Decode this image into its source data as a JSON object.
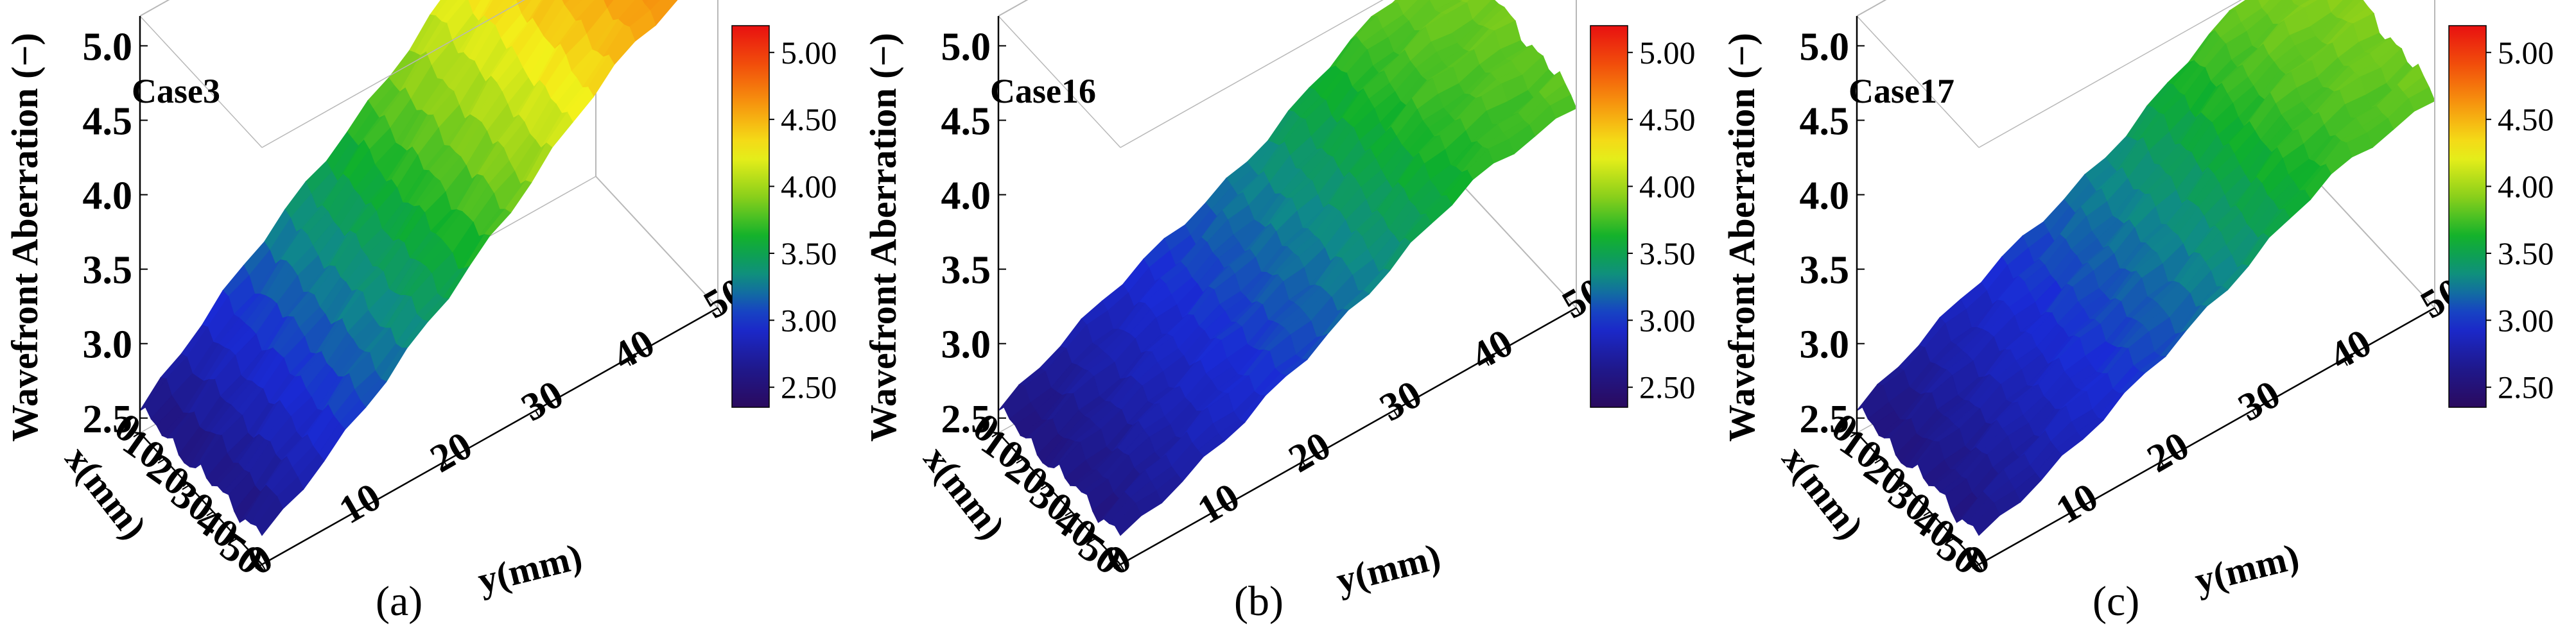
{
  "colors": {
    "background": "#ffffff",
    "colormap": [
      "#2a0a5e",
      "#1e1a90",
      "#1a2bd6",
      "#0f8a8a",
      "#0eb02c",
      "#8ed11a",
      "#f3f21a",
      "#f7a20f",
      "#f2540b",
      "#e81010"
    ]
  },
  "chart_data": [
    {
      "type": "surface3d",
      "panel_label": "(a)",
      "title": "Case3",
      "zlabel": "Wavefront Aberration  (−)",
      "xlabel": "x(mm)",
      "ylabel": "y(mm)",
      "x_ticks": [
        "0",
        "10",
        "20",
        "30",
        "40",
        "50"
      ],
      "y_ticks": [
        "0",
        "10",
        "20",
        "30",
        "40",
        "50"
      ],
      "z_ticks": [
        "2.5",
        "3.0",
        "3.5",
        "4.0",
        "4.5",
        "5.0"
      ],
      "xlim": [
        0,
        50
      ],
      "ylim": [
        0,
        50
      ],
      "zlim": [
        2.4,
        5.2
      ],
      "colorbar": {
        "ticks": [
          "2.50",
          "3.00",
          "3.50",
          "4.00",
          "4.50",
          "5.00"
        ],
        "range": [
          2.35,
          5.2
        ]
      },
      "corners_z": {
        "x0_y0": 2.55,
        "x50_y0": 2.6,
        "x0_y50": 4.95,
        "x50_y50": 4.75
      },
      "y_profile_peak": 5.05
    },
    {
      "type": "surface3d",
      "panel_label": "(b)",
      "title": "Case16",
      "zlabel": "Wavefront Aberration  (−)",
      "xlabel": "x(mm)",
      "ylabel": "y(mm)",
      "x_ticks": [
        "0",
        "10",
        "20",
        "30",
        "40",
        "50"
      ],
      "y_ticks": [
        "0",
        "10",
        "20",
        "30",
        "40",
        "50"
      ],
      "z_ticks": [
        "2.5",
        "3.0",
        "3.5",
        "4.0",
        "4.5",
        "5.0"
      ],
      "xlim": [
        0,
        50
      ],
      "ylim": [
        0,
        50
      ],
      "zlim": [
        2.4,
        5.2
      ],
      "colorbar": {
        "ticks": [
          "2.50",
          "3.00",
          "3.50",
          "4.00",
          "4.50",
          "5.00"
        ],
        "range": [
          2.35,
          5.2
        ]
      },
      "corners_z": {
        "x0_y0": 2.55,
        "x50_y0": 2.6,
        "x0_y50": 3.9,
        "x50_y50": 3.75
      },
      "y_profile_peak": 4.05
    },
    {
      "type": "surface3d",
      "panel_label": "(c)",
      "title": "Case17",
      "zlabel": "Wavefront Aberration  (−)",
      "xlabel": "x(mm)",
      "ylabel": "y(mm)",
      "x_ticks": [
        "0",
        "10",
        "20",
        "30",
        "40",
        "50"
      ],
      "y_ticks": [
        "0",
        "10",
        "20",
        "30",
        "40",
        "50"
      ],
      "z_ticks": [
        "2.5",
        "3.0",
        "3.5",
        "4.0",
        "4.5",
        "5.0"
      ],
      "xlim": [
        0,
        50
      ],
      "ylim": [
        0,
        50
      ],
      "zlim": [
        2.4,
        5.2
      ],
      "colorbar": {
        "ticks": [
          "2.50",
          "3.00",
          "3.50",
          "4.00",
          "4.50",
          "5.00"
        ],
        "range": [
          2.35,
          5.2
        ]
      },
      "corners_z": {
        "x0_y0": 2.55,
        "x50_y0": 2.6,
        "x0_y50": 3.95,
        "x50_y50": 3.8
      },
      "y_profile_peak": 4.1
    }
  ]
}
